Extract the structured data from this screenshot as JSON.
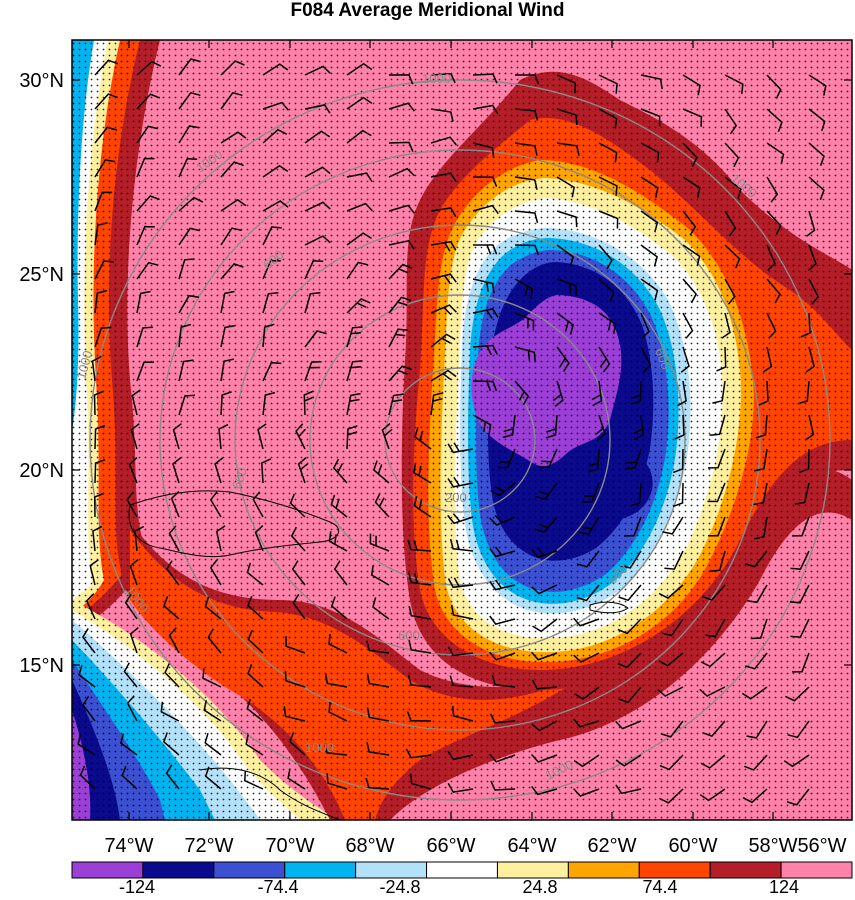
{
  "title": "F084 Average Meridional Wind",
  "map": {
    "latitude_labels": [
      "30°N",
      "25°N",
      "20°N",
      "15°N"
    ],
    "longitude_labels": [
      "74°W",
      "72°W",
      "70°W",
      "68°W",
      "66°W",
      "64°W",
      "62°W",
      "60°W",
      "58°W",
      "56°W"
    ],
    "isoline_labels": [
      "1000",
      "1000",
      "1000",
      "1000",
      "1000",
      "1000",
      "600",
      "600",
      "600",
      "600",
      "600",
      "200",
      "1000"
    ]
  },
  "colorbar": {
    "colors": [
      "#9b3fd6",
      "#0a0a8c",
      "#3c50d2",
      "#00b4f0",
      "#b4e1fa",
      "#ffffff",
      "#fff0a0",
      "#ffa500",
      "#ff4500",
      "#b41e28",
      "#ff82aa"
    ],
    "labels": [
      "-124",
      "-74.4",
      "-24.8",
      "24.8",
      "74.4",
      "124"
    ]
  },
  "colors": {
    "ring_outer": "#ff82aa",
    "ring_dark_red": "#b41e28",
    "ring_orange_red": "#ff4500",
    "ring_orange": "#ffa500",
    "ring_yellow": "#fff0a0",
    "ring_white": "#ffffff",
    "core_light_blue": "#b4e1fa",
    "core_blue": "#00b4f0",
    "core_mid_blue": "#3c50d2",
    "core_navy": "#0a0a8c",
    "core_purple": "#9b3fd6",
    "isoline": "#8a8a8a"
  }
}
